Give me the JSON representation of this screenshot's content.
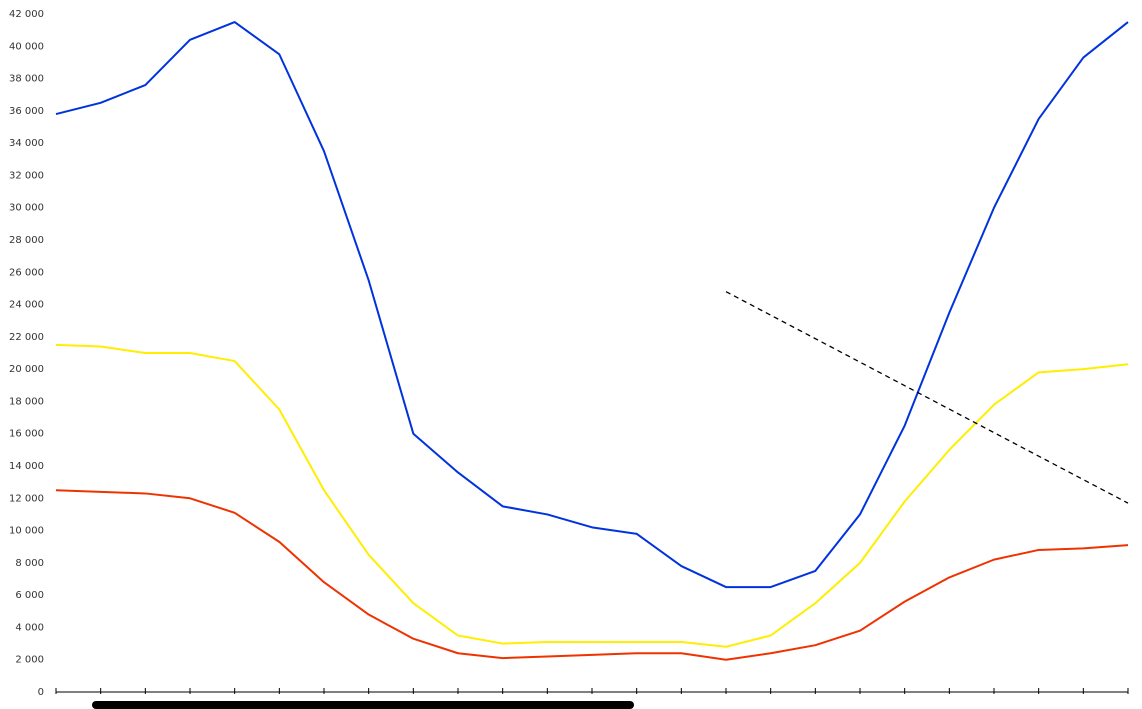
{
  "chart_data": {
    "type": "line",
    "title": "",
    "xlabel": "",
    "ylabel": "",
    "ylim": [
      0,
      42000
    ],
    "yticks": [
      0,
      2000,
      4000,
      6000,
      8000,
      10000,
      12000,
      14000,
      16000,
      18000,
      20000,
      22000,
      24000,
      26000,
      28000,
      30000,
      32000,
      34000,
      36000,
      38000,
      40000,
      42000
    ],
    "ytick_labels": [
      "0",
      "2 000",
      "4 000",
      "6 000",
      "8 000",
      "10 000",
      "12 000",
      "14 000",
      "16 000",
      "18 000",
      "20 000",
      "22 000",
      "24 000",
      "26 000",
      "28 000",
      "30 000",
      "32 000",
      "34 000",
      "36 000",
      "38 000",
      "40 000",
      "42 000"
    ],
    "x": [
      1,
      2,
      3,
      4,
      5,
      6,
      7,
      8,
      9,
      10,
      11,
      12,
      13,
      14,
      15,
      16,
      17,
      18,
      19,
      20,
      21,
      22,
      23,
      24,
      25
    ],
    "grid": false,
    "legend": "none",
    "series": [
      {
        "color": "#0033dd",
        "values": [
          35800,
          36500,
          37600,
          40400,
          41500,
          39500,
          33500,
          25500,
          16000,
          13600,
          11500,
          11000,
          10200,
          9800,
          7800,
          6500,
          6500,
          7500,
          11000,
          16500,
          23500,
          30000,
          35500,
          39300,
          41500
        ]
      },
      {
        "color": "#ffee00",
        "values": [
          21500,
          21400,
          21000,
          21000,
          20500,
          17500,
          12500,
          8500,
          5500,
          3500,
          3000,
          3100,
          3100,
          3100,
          3100,
          2800,
          3500,
          5500,
          8000,
          11800,
          15000,
          17800,
          19800,
          20000,
          20300
        ]
      },
      {
        "color": "#ee3300",
        "values": [
          12500,
          12400,
          12300,
          12000,
          11100,
          9300,
          6800,
          4800,
          3300,
          2400,
          2100,
          2200,
          2300,
          2400,
          2400,
          2000,
          2400,
          2900,
          3800,
          5600,
          7100,
          8200,
          8800,
          8900,
          9100
        ]
      }
    ],
    "trendline": {
      "style": "dashed",
      "color": "#000000",
      "x": [
        16,
        25
      ],
      "y": [
        24800,
        11700
      ]
    }
  },
  "scrollbar": {
    "label": ""
  }
}
